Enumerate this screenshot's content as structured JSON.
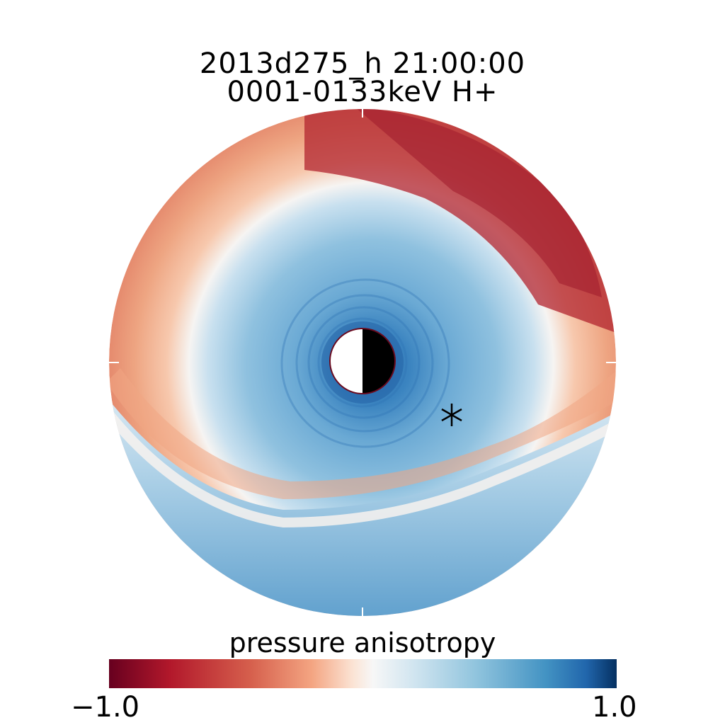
{
  "chart_data": {
    "type": "heatmap",
    "projection": "polar (equatorial plane, Earth at center)",
    "title": "2013d275_h  21:00:00",
    "subtitle": "0001-0133keV H+",
    "colorbar": {
      "label": "pressure anisotropy",
      "min": -1.0,
      "max": 1.0,
      "tick_labels": [
        "−1.0",
        "1.0"
      ],
      "colormap": "diverging red-white-blue (RdBu)"
    },
    "radial_profile": [
      {
        "r_frac": 0.0,
        "value": 0.9
      },
      {
        "r_frac": 0.08,
        "value": 0.75
      },
      {
        "r_frac": 0.18,
        "value": 0.55
      },
      {
        "r_frac": 0.3,
        "value": 0.45
      },
      {
        "r_frac": 0.45,
        "value": 0.3
      },
      {
        "r_frac": 0.56,
        "value": 0.0
      },
      {
        "r_frac": 0.68,
        "value": -0.4
      },
      {
        "r_frac": 0.85,
        "value": -0.55
      },
      {
        "r_frac": 1.0,
        "value": -0.7
      }
    ],
    "features": {
      "outer_boundary_band_value": 0.5,
      "earth_symbol": "half-lit disk (day side left, night side right)",
      "marker": "asterisk"
    }
  },
  "colors": {
    "dark_red": "#67001f",
    "red": "#b2182b",
    "salmon": "#ef8a62",
    "light": "#fddbc7",
    "white": "#f7f7f7",
    "lightblue": "#d1e5f0",
    "blue": "#67a9cf",
    "midblue": "#2166ac",
    "dark_blue": "#053061"
  }
}
